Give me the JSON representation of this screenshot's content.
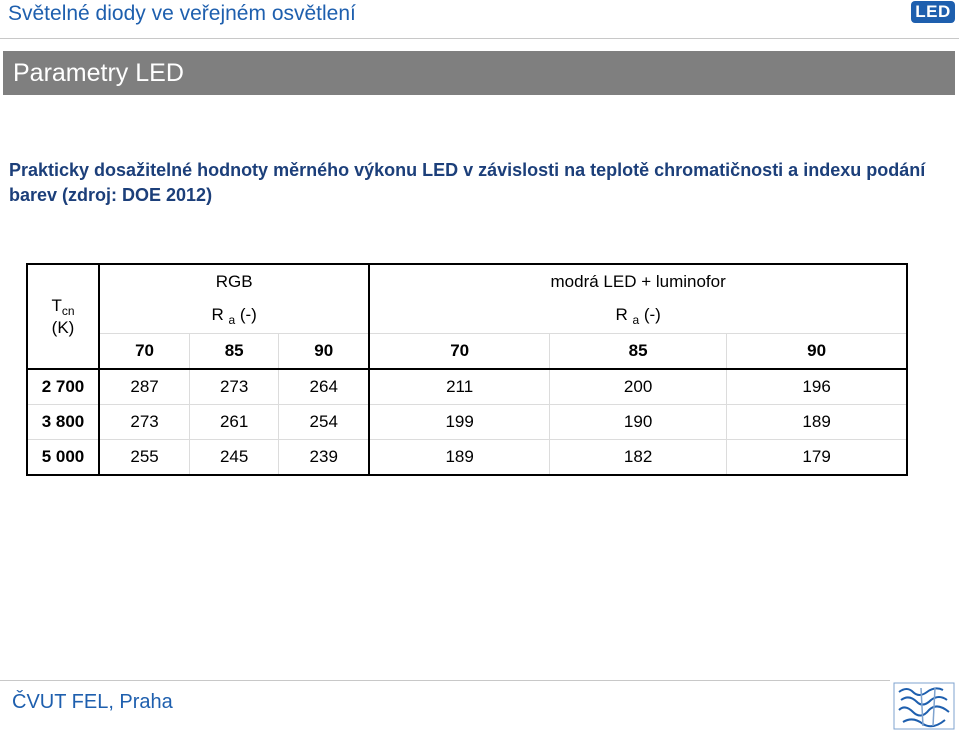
{
  "header": {
    "title": "Světelné diody ve veřejném osvětlení",
    "logo_text": "LED"
  },
  "section": {
    "title": "Parametry LED"
  },
  "subtitle": "Prakticky dosažitelné hodnoty měrného výkonu LED v závislosti na teplotě chromatičnosti a indexu podání barev (zdroj: DOE 2012)",
  "table": {
    "tcn_label": "T",
    "tcn_sub": "cn",
    "tcn_unit": "(K)",
    "group_rgb": "RGB",
    "group_blue": "modrá LED + luminofor",
    "ra_main": "R",
    "ra_sub": "a",
    "ra_unit": " (-)",
    "ra_values": [
      "70",
      "85",
      "90",
      "70",
      "85",
      "90"
    ],
    "rows": [
      {
        "label": "2 700",
        "values": [
          "287",
          "273",
          "264",
          "211",
          "200",
          "196"
        ]
      },
      {
        "label": "3 800",
        "values": [
          "273",
          "261",
          "254",
          "199",
          "190",
          "189"
        ]
      },
      {
        "label": "5 000",
        "values": [
          "255",
          "245",
          "239",
          "189",
          "182",
          "179"
        ]
      }
    ]
  },
  "footer": {
    "text": "ČVUT FEL, Praha"
  }
}
